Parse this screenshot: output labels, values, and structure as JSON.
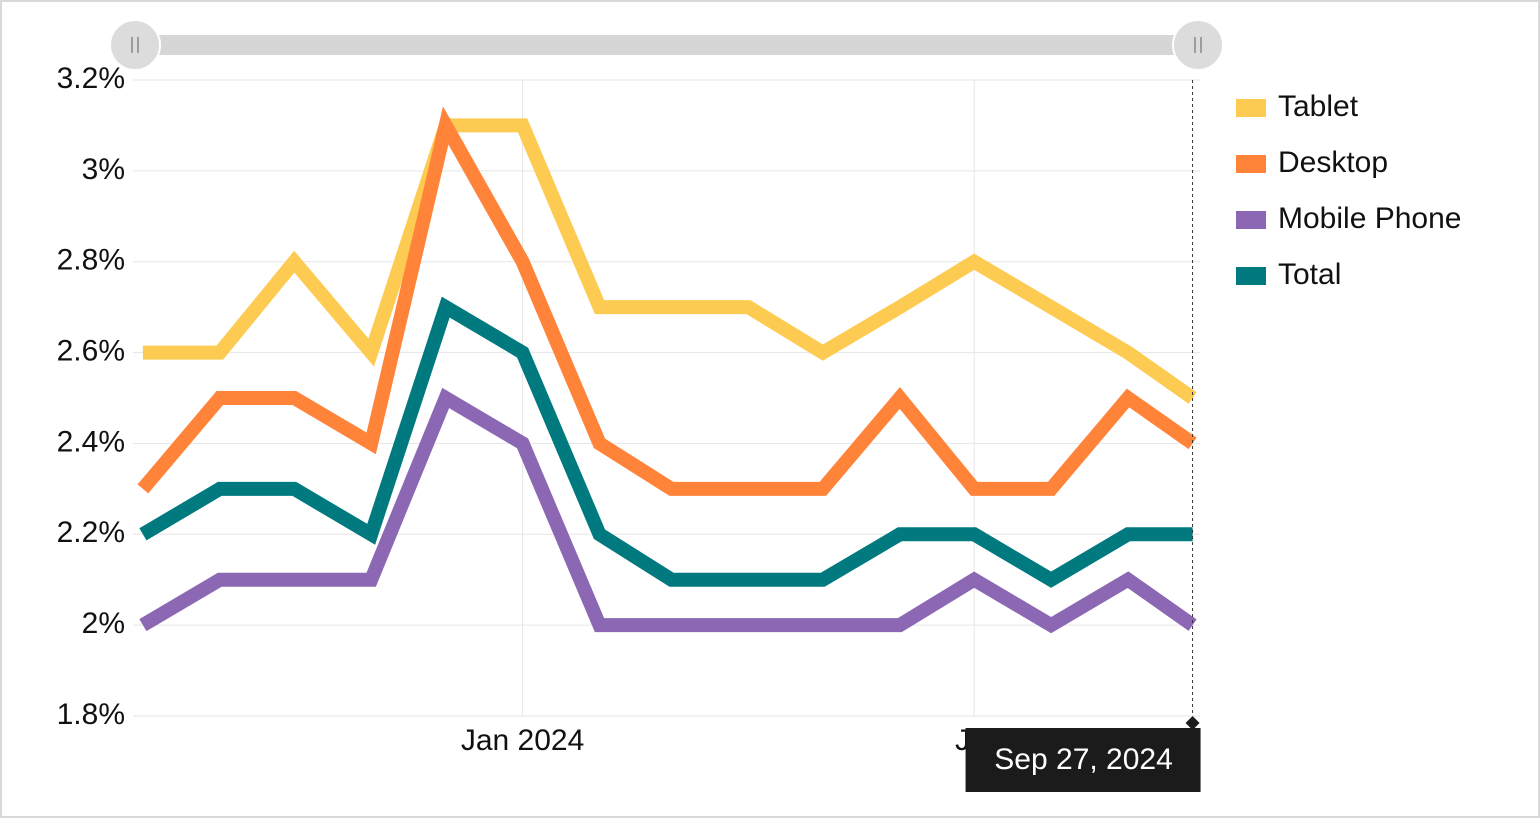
{
  "chart_data": {
    "type": "line",
    "x": [
      "2023-08-01",
      "2023-09-01",
      "2023-10-01",
      "2023-11-01",
      "2023-12-01",
      "2024-01-01",
      "2024-02-01",
      "2024-03-01",
      "2024-04-01",
      "2024-05-01",
      "2024-06-01",
      "2024-07-01",
      "2024-08-01",
      "2024-09-01",
      "2024-09-27"
    ],
    "series": [
      {
        "name": "Tablet",
        "color": "#fecb52",
        "values": [
          2.6,
          2.6,
          2.8,
          2.6,
          3.1,
          3.1,
          2.7,
          2.7,
          2.7,
          2.6,
          2.7,
          2.8,
          2.7,
          2.6,
          2.5
        ]
      },
      {
        "name": "Desktop",
        "color": "#ff843a",
        "values": [
          2.3,
          2.5,
          2.5,
          2.4,
          3.1,
          2.8,
          2.4,
          2.3,
          2.3,
          2.3,
          2.5,
          2.3,
          2.3,
          2.5,
          2.4
        ]
      },
      {
        "name": "Mobile Phone",
        "color": "#8c67b4",
        "values": [
          2.0,
          2.1,
          2.1,
          2.1,
          2.5,
          2.4,
          2.0,
          2.0,
          2.0,
          2.0,
          2.0,
          2.1,
          2.0,
          2.1,
          2.0
        ]
      },
      {
        "name": "Total",
        "color": "#007a7f",
        "values": [
          2.2,
          2.3,
          2.3,
          2.2,
          2.7,
          2.6,
          2.2,
          2.1,
          2.1,
          2.1,
          2.2,
          2.2,
          2.1,
          2.2,
          2.2
        ]
      }
    ],
    "xlim": [
      "2023-07-28",
      "2024-09-30"
    ],
    "xticks": [
      {
        "value": "2024-01-01",
        "label": "Jan 2024"
      },
      {
        "value": "2024-07-01",
        "label": "Jul"
      }
    ],
    "ylim": [
      1.8,
      3.2
    ],
    "yticks": [
      {
        "value": 1.8,
        "label": "1.8%"
      },
      {
        "value": 2,
        "label": "2%"
      },
      {
        "value": 2.2,
        "label": "2.2%"
      },
      {
        "value": 2.4,
        "label": "2.4%"
      },
      {
        "value": 2.6,
        "label": "2.6%"
      },
      {
        "value": 2.8,
        "label": "2.8%"
      },
      {
        "value": 3,
        "label": "3%"
      },
      {
        "value": 3.2,
        "label": "3.2%"
      }
    ],
    "grid": true,
    "legend": "right",
    "tooltip": "Sep 27, 2024"
  }
}
